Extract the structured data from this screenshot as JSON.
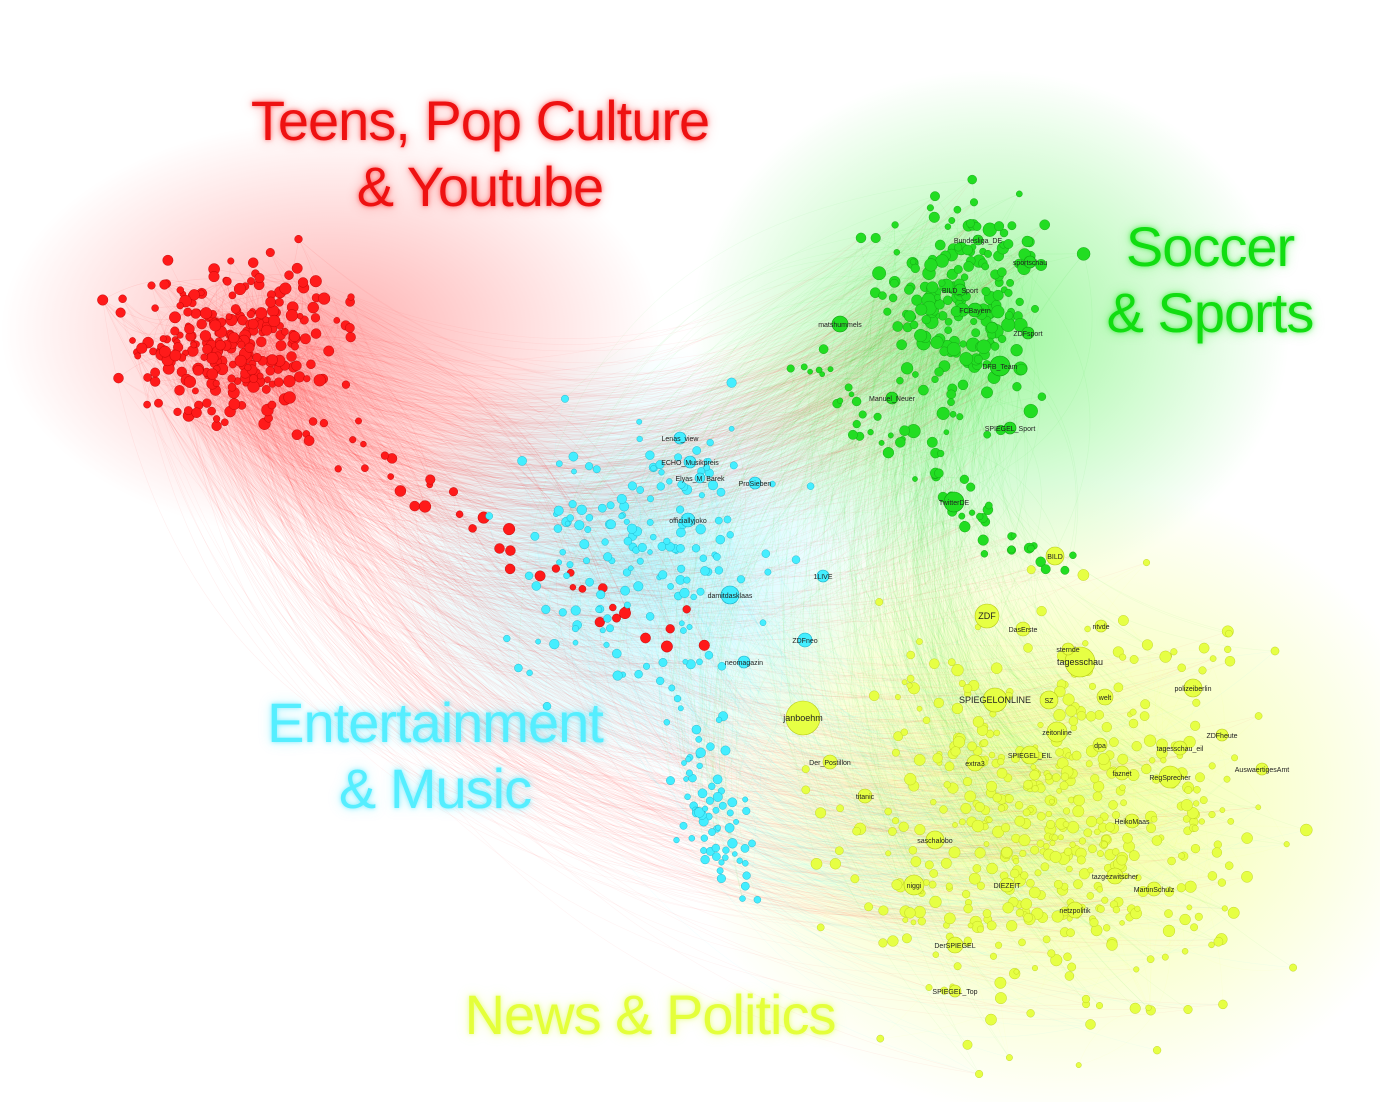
{
  "clusters": [
    {
      "id": "teens",
      "color": "#ff1a1a",
      "title_line1": "Teens, Pop Culture",
      "title_line2": "& Youtube"
    },
    {
      "id": "soccer",
      "color": "#22dd22",
      "title_line1": "Soccer",
      "title_line2": "& Sports"
    },
    {
      "id": "entertainment",
      "color": "#44eeff",
      "title_line1": "Entertainment",
      "title_line2": "& Music"
    },
    {
      "id": "news",
      "color": "#e6ff44",
      "title_line1": "News & Politics",
      "title_line2": ""
    }
  ],
  "named_nodes": [
    {
      "label": "Bundesliga_DE",
      "cluster": "soccer"
    },
    {
      "label": "DFB_Team",
      "cluster": "soccer"
    },
    {
      "label": "matshummels",
      "cluster": "soccer"
    },
    {
      "label": "SPIEGEL_Sport",
      "cluster": "soccer"
    },
    {
      "label": "ZDFsport",
      "cluster": "soccer"
    },
    {
      "label": "Manuel_Neuer",
      "cluster": "soccer"
    },
    {
      "label": "FCBayern",
      "cluster": "soccer"
    },
    {
      "label": "sportschau",
      "cluster": "soccer"
    },
    {
      "label": "TwitterDE",
      "cluster": "soccer"
    },
    {
      "label": "BILD_Sport",
      "cluster": "soccer"
    },
    {
      "label": "officiallyjoko",
      "cluster": "entertainment"
    },
    {
      "label": "damitdasklaas",
      "cluster": "entertainment"
    },
    {
      "label": "ECHO_Musikpreis",
      "cluster": "entertainment"
    },
    {
      "label": "Elyas_M_Barek",
      "cluster": "entertainment"
    },
    {
      "label": "ProSieben",
      "cluster": "entertainment"
    },
    {
      "label": "ZDFneo",
      "cluster": "entertainment"
    },
    {
      "label": "1LIVE",
      "cluster": "entertainment"
    },
    {
      "label": "neomagazin",
      "cluster": "entertainment"
    },
    {
      "label": "Lenas_view",
      "cluster": "entertainment"
    },
    {
      "label": "janboehm",
      "cluster": "news"
    },
    {
      "label": "tagesschau",
      "cluster": "news"
    },
    {
      "label": "ZDF",
      "cluster": "news"
    },
    {
      "label": "BILD",
      "cluster": "news"
    },
    {
      "label": "SPIEGELONLINE",
      "cluster": "news"
    },
    {
      "label": "SZ",
      "cluster": "news"
    },
    {
      "label": "zeitonline",
      "cluster": "news"
    },
    {
      "label": "SPIEGEL_EIL",
      "cluster": "news"
    },
    {
      "label": "welt",
      "cluster": "news"
    },
    {
      "label": "polizeiberlin",
      "cluster": "news"
    },
    {
      "label": "RegSprecher",
      "cluster": "news"
    },
    {
      "label": "saschalobo",
      "cluster": "news"
    },
    {
      "label": "niggi",
      "cluster": "news"
    },
    {
      "label": "DerSPIEGEL",
      "cluster": "news"
    },
    {
      "label": "dpa",
      "cluster": "news"
    },
    {
      "label": "faznet",
      "cluster": "news"
    },
    {
      "label": "extra3",
      "cluster": "news"
    },
    {
      "label": "titanic",
      "cluster": "news"
    },
    {
      "label": "DasErste",
      "cluster": "news"
    },
    {
      "label": "AuswaertigesAmt",
      "cluster": "news"
    },
    {
      "label": "tazgezwitscher",
      "cluster": "news"
    },
    {
      "label": "netzpolitik",
      "cluster": "news"
    },
    {
      "label": "SPIEGEL_Top",
      "cluster": "news"
    },
    {
      "label": "Der_Postillon",
      "cluster": "news"
    },
    {
      "label": "sternde",
      "cluster": "news"
    },
    {
      "label": "ntvde",
      "cluster": "news"
    },
    {
      "label": "MartinSchulz",
      "cluster": "news"
    },
    {
      "label": "HeikoMaas",
      "cluster": "news"
    },
    {
      "label": "DIEZEIT",
      "cluster": "news"
    },
    {
      "label": "tagesschau_eil",
      "cluster": "news"
    },
    {
      "label": "ZDFheute",
      "cluster": "news"
    }
  ]
}
